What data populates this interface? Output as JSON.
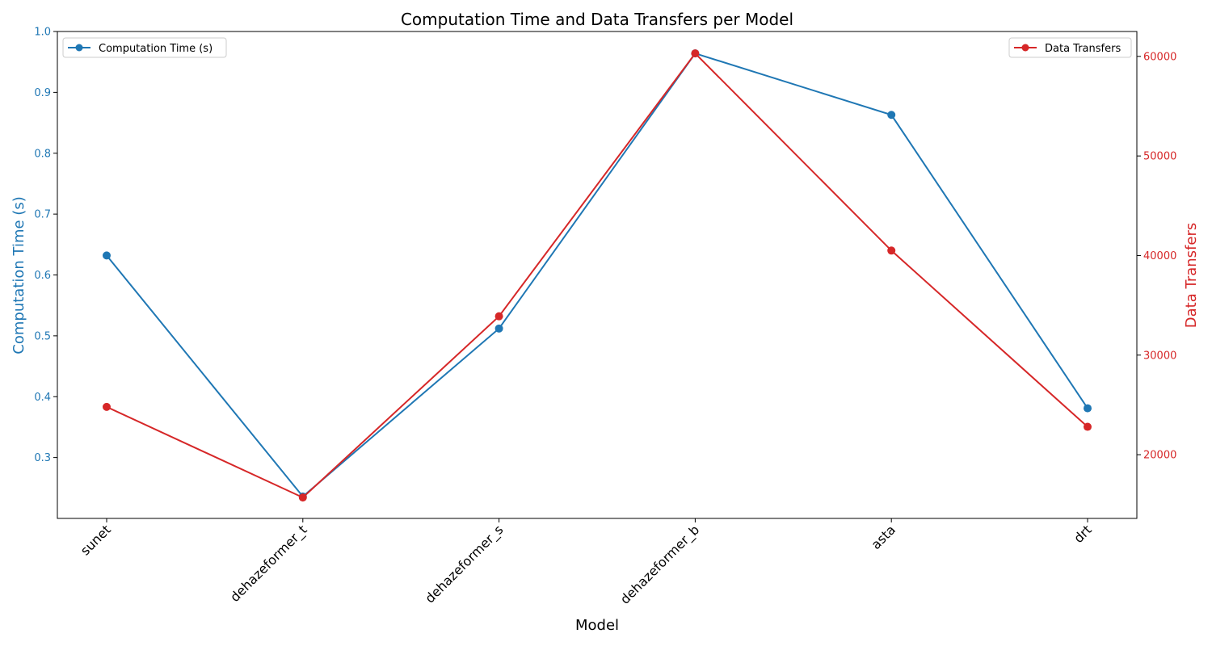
{
  "chart_data": {
    "type": "line",
    "title": "Computation Time and Data Transfers per Model",
    "xlabel": "Model",
    "categories": [
      "sunet",
      "dehazeformer_t",
      "dehazeformer_s",
      "dehazeformer_b",
      "asta",
      "drt"
    ],
    "y_left": {
      "label": "Computation Time (s)",
      "color": "#1f77b4",
      "ylim": [
        0.2,
        1.0
      ],
      "ticks": [
        0.3,
        0.4,
        0.5,
        0.6,
        0.7,
        0.8,
        0.9,
        1.0
      ],
      "tick_labels": [
        "0.3",
        "0.4",
        "0.5",
        "0.6",
        "0.7",
        "0.8",
        "0.9",
        "1.0"
      ]
    },
    "y_right": {
      "label": "Data Transfers",
      "color": "#d62728",
      "ylim": [
        13600,
        62500
      ],
      "ticks": [
        20000,
        30000,
        40000,
        50000,
        60000
      ],
      "tick_labels": [
        "20000",
        "30000",
        "40000",
        "50000",
        "60000"
      ]
    },
    "series": [
      {
        "name": "Computation Time (s)",
        "axis": "left",
        "color": "#1f77b4",
        "values": [
          0.632,
          0.236,
          0.512,
          0.964,
          0.863,
          0.381
        ]
      },
      {
        "name": "Data Transfers",
        "axis": "right",
        "color": "#d62728",
        "values": [
          24800,
          15700,
          33900,
          60300,
          40500,
          22800
        ]
      }
    ],
    "legend_left_placement": "upper-left",
    "legend_right_placement": "upper-right",
    "grid": false
  }
}
